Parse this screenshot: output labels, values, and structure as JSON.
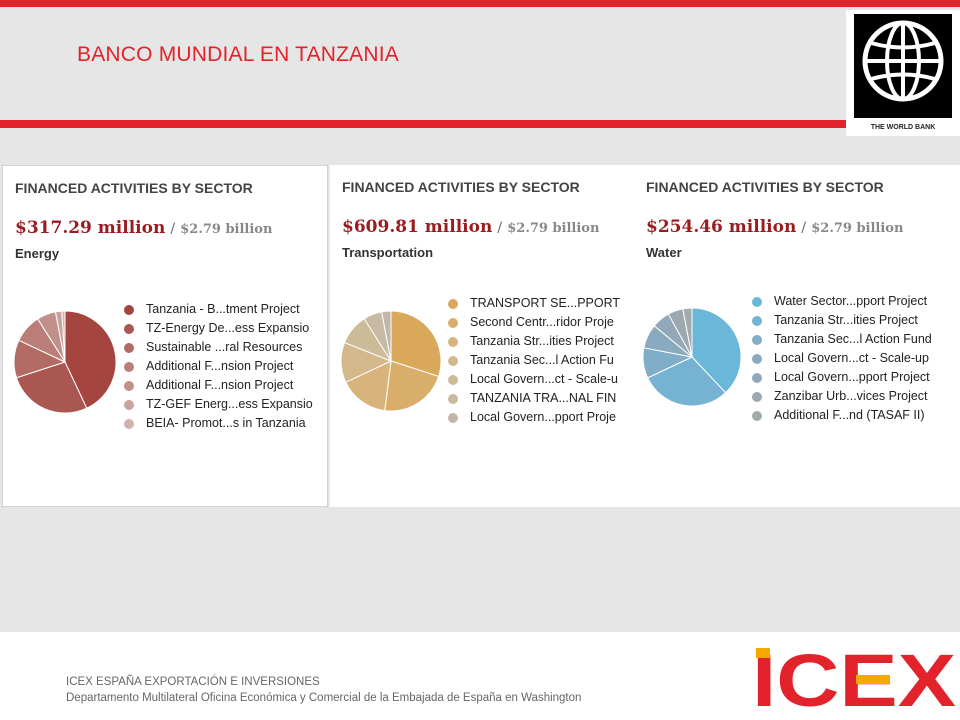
{
  "header": {
    "title": "BANCO MUNDIAL EN TANZANIA",
    "logo_text": "THE WORLD BANK",
    "accent_color": "#e3232b"
  },
  "chart_data": [
    {
      "type": "pie",
      "title": "FINANCED ACTIVITIES BY SECTOR",
      "amount": "$317.29 million",
      "separator": "/",
      "total": "$2.79 billion",
      "sector": "Energy",
      "legend_position": "right",
      "slices": [
        {
          "label": "Tanzania - B...tment Project",
          "value": 43,
          "color": "#a4453f"
        },
        {
          "label": "TZ-Energy De...ess Expansio",
          "value": 27,
          "color": "#ab5751"
        },
        {
          "label": "Sustainable ...ral Resources",
          "value": 12,
          "color": "#b36b65"
        },
        {
          "label": "Additional F...nsion Project",
          "value": 9,
          "color": "#bb7d78"
        },
        {
          "label": "Additional F...nsion Project",
          "value": 6,
          "color": "#c2908b"
        },
        {
          "label": "TZ-GEF Energ...ess Expansio",
          "value": 2,
          "color": "#c9a39f"
        },
        {
          "label": "BEIA- Promot...s in Tanzania",
          "value": 1,
          "color": "#d0b2ae"
        }
      ]
    },
    {
      "type": "pie",
      "title": "FINANCED ACTIVITIES BY SECTOR",
      "amount": "$609.81 million",
      "separator": "/",
      "total": "$2.79 billion",
      "sector": "Transportation",
      "legend_position": "right",
      "slices": [
        {
          "label": "TRANSPORT SE...PPORT",
          "value": 30,
          "color": "#d9a85a"
        },
        {
          "label": "Second Centr...ridor Proje",
          "value": 22,
          "color": "#d8ae6a"
        },
        {
          "label": "Tanzania Str...ities Project",
          "value": 16,
          "color": "#d7b47b"
        },
        {
          "label": "Tanzania Sec...l Action Fu",
          "value": 13,
          "color": "#d3b88b"
        },
        {
          "label": "Local Govern...ct - Scale-u",
          "value": 10,
          "color": "#cdba99"
        },
        {
          "label": "TANZANIA TRA...NAL FIN",
          "value": 6,
          "color": "#c8b9a3"
        },
        {
          "label": "Local Govern...pport Proje",
          "value": 3,
          "color": "#c2b6aa"
        }
      ]
    },
    {
      "type": "pie",
      "title": "FINANCED ACTIVITIES BY SECTOR",
      "amount": "$254.46 million",
      "separator": "/",
      "total": "$2.79 billion",
      "sector": "Water",
      "legend_position": "right",
      "slices": [
        {
          "label": "Water Sector...pport Project",
          "value": 38,
          "color": "#6bb7da"
        },
        {
          "label": "Tanzania Str...ities Project",
          "value": 30,
          "color": "#76b2d1"
        },
        {
          "label": "Tanzania Sec...l Action Fund",
          "value": 10,
          "color": "#80adc8"
        },
        {
          "label": "Local Govern...ct - Scale-up",
          "value": 8,
          "color": "#8aaabf"
        },
        {
          "label": "Local Govern...pport Project",
          "value": 6,
          "color": "#93a8b8"
        },
        {
          "label": "Zanzibar Urb...vices Project",
          "value": 5,
          "color": "#9ba8b1"
        },
        {
          "label": "Additional F...nd (TASAF II)",
          "value": 3,
          "color": "#a2aaae"
        }
      ]
    }
  ],
  "footer": {
    "line1": "ICEX ESPAÑA EXPORTACIÓN  E INVERSIONES",
    "line2": "Departamento Multilateral Oficina Económica y Comercial de la Embajada de España en Washington",
    "logo_text": "ICEX",
    "logo_color": "#e3232b",
    "logo_accent": "#f5a800"
  }
}
